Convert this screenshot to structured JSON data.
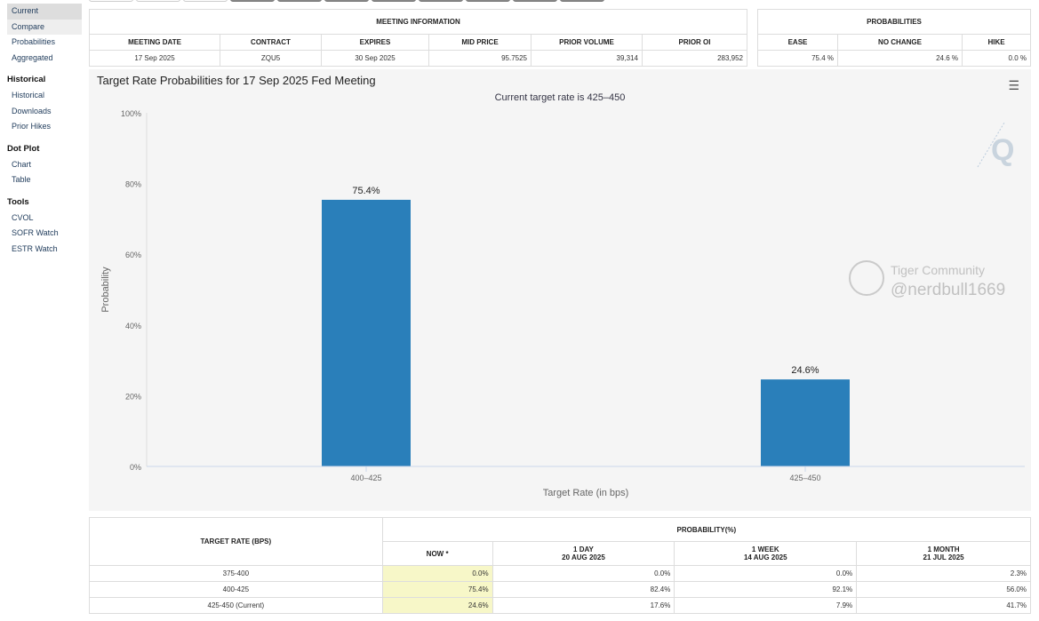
{
  "sidebar": {
    "items": [
      {
        "label": "Current"
      },
      {
        "label": "Compare"
      },
      {
        "label": "Probabilities"
      },
      {
        "label": "Aggregated"
      }
    ],
    "sections": [
      {
        "title": "Historical",
        "items": [
          "Historical",
          "Downloads",
          "Prior Hikes"
        ]
      },
      {
        "title": "Dot Plot",
        "items": [
          "Chart",
          "Table"
        ]
      },
      {
        "title": "Tools",
        "items": [
          "CVOL",
          "SOFR Watch",
          "ESTR Watch"
        ]
      }
    ]
  },
  "meeting": {
    "title": "MEETING INFORMATION",
    "headers": [
      "MEETING DATE",
      "CONTRACT",
      "EXPIRES",
      "MID PRICE",
      "PRIOR VOLUME",
      "PRIOR OI"
    ],
    "values": [
      "17 Sep 2025",
      "ZQU5",
      "30 Sep 2025",
      "95.7525",
      "39,314",
      "283,952"
    ]
  },
  "probabilities": {
    "title": "PROBABILITIES",
    "headers": [
      "EASE",
      "NO CHANGE",
      "HIKE"
    ],
    "values": [
      "75.4 %",
      "24.6 %",
      "0.0 %"
    ]
  },
  "chart": {
    "title": "Target Rate Probabilities for 17 Sep 2025 Fed Meeting",
    "subtitle": "Current target rate is 425–450",
    "menu_icon": "hamburger-icon"
  },
  "chart_data": {
    "type": "bar",
    "categories": [
      "400–425",
      "425–450"
    ],
    "values": [
      75.4,
      24.6
    ],
    "data_labels": [
      "75.4%",
      "24.6%"
    ],
    "xlabel": "Target Rate (in bps)",
    "ylabel": "Probability",
    "ylim": [
      0,
      100
    ],
    "yticks": [
      "0%",
      "20%",
      "40%",
      "60%",
      "80%",
      "100%"
    ],
    "grid": false,
    "color": "#2a7fba"
  },
  "bottom": {
    "col0": "TARGET RATE (BPS)",
    "group": "PROBABILITY(%)",
    "cols": [
      {
        "l1": "NOW *",
        "l2": ""
      },
      {
        "l1": "1 DAY",
        "l2": "20 AUG 2025"
      },
      {
        "l1": "1 WEEK",
        "l2": "14 AUG 2025"
      },
      {
        "l1": "1 MONTH",
        "l2": "21 JUL 2025"
      }
    ],
    "rows": [
      {
        "rate": "375-400",
        "v": [
          "0.0%",
          "0.0%",
          "0.0%",
          "2.3%"
        ]
      },
      {
        "rate": "400-425",
        "v": [
          "75.4%",
          "82.4%",
          "92.1%",
          "56.0%"
        ]
      },
      {
        "rate": "425-450 (Current)",
        "v": [
          "24.6%",
          "17.6%",
          "7.9%",
          "41.7%"
        ]
      }
    ]
  },
  "watermark": {
    "brand": "Tiger Community",
    "handle": "@nerdbull1669"
  }
}
